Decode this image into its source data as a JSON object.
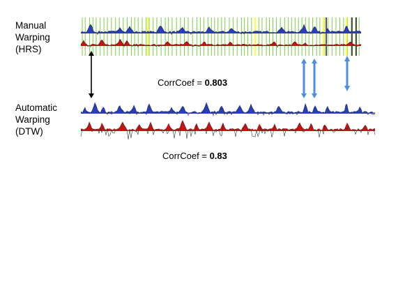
{
  "manual": {
    "label_lines": [
      "Manual",
      "Warping",
      "(HRS)"
    ],
    "corr_label": "CorrCoef = ",
    "corr_value": "0.803"
  },
  "automatic": {
    "label_lines": [
      "Automatic",
      "Warping",
      "(DTW)"
    ],
    "corr_label": "CorrCoef = ",
    "corr_value": "0.83"
  },
  "colors": {
    "blue_trace": "#2a3fbf",
    "red_trace": "#cc1111",
    "green_lines": "#7ccf3f",
    "yellow_lines": "#ffff33",
    "black_lines": "#000000",
    "arrow_blue": "#4a8fe0",
    "arrow_black": "#000000"
  }
}
